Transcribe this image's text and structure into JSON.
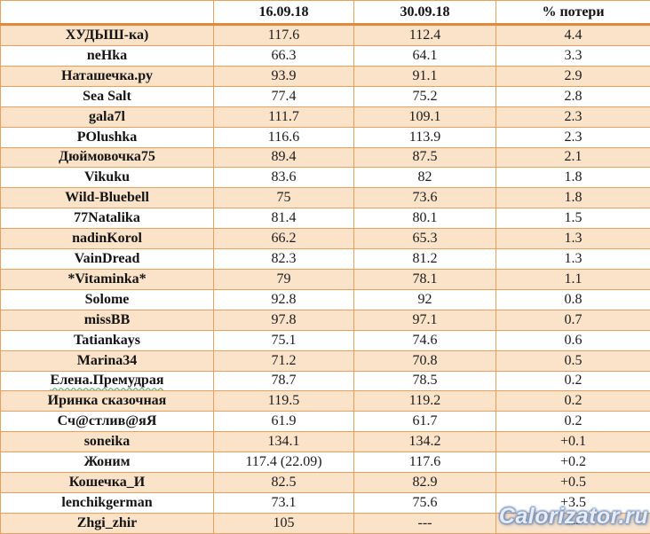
{
  "chart_data": {
    "type": "table",
    "title": "",
    "columns": [
      "",
      "16.09.18",
      "30.09.18",
      "% потери"
    ],
    "rows": [
      {
        "name": "ХУДЫШ-ка)",
        "d1": "117.6",
        "d2": "112.4",
        "loss": "4.4"
      },
      {
        "name": "neHka",
        "d1": "66.3",
        "d2": "64.1",
        "loss": "3.3"
      },
      {
        "name": "Наташечка.ру",
        "d1": "93.9",
        "d2": "91.1",
        "loss": "2.9"
      },
      {
        "name": "Sea Salt",
        "d1": "77.4",
        "d2": "75.2",
        "loss": "2.8"
      },
      {
        "name": "gala7l",
        "d1": "111.7",
        "d2": "109.1",
        "loss": "2.3"
      },
      {
        "name": "POlushka",
        "d1": "116.6",
        "d2": "113.9",
        "loss": "2.3"
      },
      {
        "name": "Дюймовочка75",
        "d1": "89.4",
        "d2": "87.5",
        "loss": "2.1"
      },
      {
        "name": "Vikuku",
        "d1": "83.6",
        "d2": "82",
        "loss": "1.8"
      },
      {
        "name": "Wild-Bluebell",
        "d1": "75",
        "d2": "73.6",
        "loss": "1.8"
      },
      {
        "name": "77Natalika",
        "d1": "81.4",
        "d2": "80.1",
        "loss": "1.5"
      },
      {
        "name": "nadinKorol",
        "d1": "66.2",
        "d2": "65.3",
        "loss": "1.3"
      },
      {
        "name": "VainDread",
        "d1": "82.3",
        "d2": "81.2",
        "loss": "1.3"
      },
      {
        "name": "*Vitaminka*",
        "d1": "79",
        "d2": "78.1",
        "loss": "1.1"
      },
      {
        "name": "Solome",
        "d1": "92.8",
        "d2": "92",
        "loss": "0.8"
      },
      {
        "name": "missBB",
        "d1": "97.8",
        "d2": "97.1",
        "loss": "0.7"
      },
      {
        "name": "Tatiankays",
        "d1": "75.1",
        "d2": "74.6",
        "loss": "0.6"
      },
      {
        "name": "Marina34",
        "d1": "71.2",
        "d2": "70.8",
        "loss": "0.5"
      },
      {
        "name": "Елена.Премудрая",
        "d1": "78.7",
        "d2": "78.5",
        "loss": "0.2",
        "misspelled": true
      },
      {
        "name": "Иринка сказочная",
        "d1": "119.5",
        "d2": "119.2",
        "loss": "0.2"
      },
      {
        "name": "Сч@стлив@яЯ",
        "d1": "61.9",
        "d2": "61.7",
        "loss": "0.2"
      },
      {
        "name": "soneika",
        "d1": "134.1",
        "d2": "134.2",
        "loss": "+0.1"
      },
      {
        "name": "Жоним",
        "d1": "117.4 (22.09)",
        "d2": "117.6",
        "loss": "+0.2"
      },
      {
        "name": "Кошечка_И",
        "d1": "82.5",
        "d2": "82.9",
        "loss": "+0.5"
      },
      {
        "name": "lenchikgerman",
        "d1": "73.1",
        "d2": "75.6",
        "loss": "+3.5"
      },
      {
        "name": "Zhgi_zhir",
        "d1": "105",
        "d2": "---",
        "loss": "---"
      }
    ],
    "layout": {
      "zebra_row_color": "#fbe3ca",
      "grid_border_color": "#e9a05c",
      "header_separator_color": "#e2873b"
    }
  },
  "watermark": {
    "text": "Calorizator.ru"
  }
}
